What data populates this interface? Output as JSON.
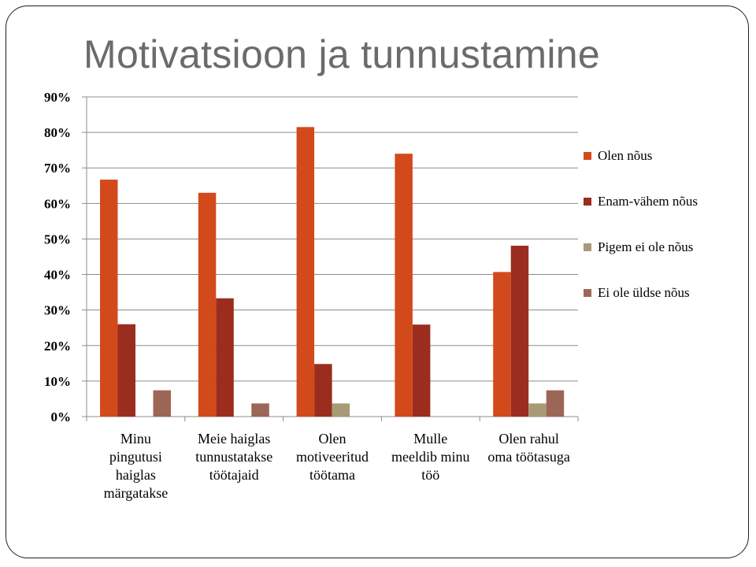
{
  "slide": {
    "title": "Motivatsioon ja tunnustamine"
  },
  "chart_data": {
    "type": "bar",
    "ylim": [
      0,
      0.9
    ],
    "yticks": [
      "0%",
      "10%",
      "20%",
      "30%",
      "40%",
      "50%",
      "60%",
      "70%",
      "80%",
      "90%"
    ],
    "grid": true,
    "legend_position": "right",
    "categories": [
      [
        "Minu",
        "pingutusi",
        "haiglas",
        "märgatakse"
      ],
      [
        "Meie haiglas",
        "tunnustatakse",
        "töötajaid"
      ],
      [
        "Olen",
        "motiveeritud",
        "töötama"
      ],
      [
        "Mulle",
        "meeldib minu",
        "töö"
      ],
      [
        "Olen rahul",
        "oma töötasuga"
      ]
    ],
    "series": [
      {
        "name": "Olen nõus",
        "color": "#d24a1c",
        "values": [
          0.667,
          0.63,
          0.815,
          0.74,
          0.407
        ]
      },
      {
        "name": "Enam-vähem nõus",
        "color": "#9b2d1f",
        "values": [
          0.26,
          0.333,
          0.148,
          0.259,
          0.481
        ]
      },
      {
        "name": "Pigem ei ole nõus",
        "color": "#a89a77",
        "values": [
          0,
          0,
          0.037,
          0,
          0.037
        ]
      },
      {
        "name": "Ei ole üldse nõus",
        "color": "#9c6657",
        "values": [
          0.074,
          0.037,
          0,
          0,
          0.074
        ]
      }
    ]
  }
}
